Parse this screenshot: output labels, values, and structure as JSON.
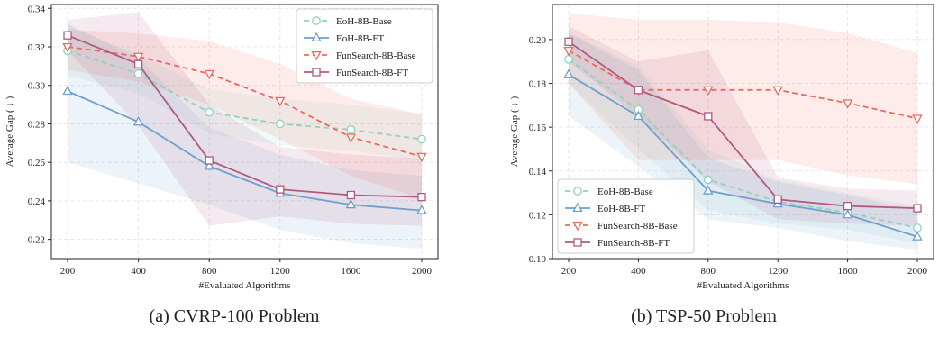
{
  "figures": [
    {
      "caption": "(a) CVRP-100 Problem",
      "chart_data": {
        "type": "line",
        "x": [
          200,
          400,
          800,
          1200,
          1600,
          2000
        ],
        "x_ticks": [
          "200",
          "400",
          "800",
          "1200",
          "1600",
          "2000"
        ],
        "x_scale": "categorical-evenly-spaced",
        "xlabel": "#Evaluated Algorithms",
        "ylabel": "Average Gap ( ↓ )",
        "ylim": [
          0.21,
          0.342
        ],
        "y_ticks": [
          0.22,
          0.24,
          0.26,
          0.28,
          0.3,
          0.32,
          0.34
        ],
        "grid": true,
        "legend_position": "top-right",
        "series": [
          {
            "name": "EoH-8B-Base",
            "color": "#8fd3bf",
            "dash": true,
            "marker": "circle",
            "values": [
              0.318,
              0.306,
              0.286,
              0.28,
              0.277,
              0.272
            ],
            "band": [
              [
                0.331,
                0.305
              ],
              [
                0.316,
                0.296
              ],
              [
                0.298,
                0.275
              ],
              [
                0.293,
                0.269
              ],
              [
                0.29,
                0.266
              ],
              [
                0.285,
                0.261
              ]
            ]
          },
          {
            "name": "EoH-8B-FT",
            "color": "#6f9fcf",
            "dash": false,
            "marker": "triangle",
            "values": [
              0.297,
              0.281,
              0.258,
              0.244,
              0.238,
              0.235
            ],
            "band": [
              [
                0.332,
                0.26
              ],
              [
                0.314,
                0.249
              ],
              [
                0.278,
                0.238
              ],
              [
                0.264,
                0.225
              ],
              [
                0.256,
                0.218
              ],
              [
                0.253,
                0.215
              ]
            ]
          },
          {
            "name": "FunSearch-8B-Base",
            "color": "#ec6a5d",
            "dash": true,
            "marker": "triangle-down",
            "values": [
              0.32,
              0.315,
              0.306,
              0.292,
              0.273,
              0.263
            ],
            "band": [
              [
                0.329,
                0.308
              ],
              [
                0.327,
                0.302
              ],
              [
                0.323,
                0.29
              ],
              [
                0.311,
                0.272
              ],
              [
                0.293,
                0.253
              ],
              [
                0.285,
                0.241
              ]
            ]
          },
          {
            "name": "FunSearch-8B-FT",
            "color": "#b05a80",
            "dash": false,
            "marker": "square",
            "values": [
              0.326,
              0.311,
              0.261,
              0.246,
              0.243,
              0.242
            ],
            "band": [
              [
                0.334,
                0.318
              ],
              [
                0.338,
                0.279
              ],
              [
                0.29,
                0.227
              ],
              [
                0.268,
                0.232
              ],
              [
                0.264,
                0.228
              ],
              [
                0.262,
                0.227
              ]
            ]
          }
        ]
      }
    },
    {
      "caption": "(b) TSP-50 Problem",
      "chart_data": {
        "type": "line",
        "x": [
          200,
          400,
          800,
          1200,
          1600,
          2000
        ],
        "x_ticks": [
          "200",
          "400",
          "800",
          "1200",
          "1600",
          "2000"
        ],
        "x_scale": "categorical-evenly-spaced",
        "xlabel": "#Evaluated Algorithms",
        "ylabel": "Average Gap ( ↓ )",
        "ylim": [
          0.1,
          0.216
        ],
        "y_ticks": [
          0.1,
          0.12,
          0.14,
          0.16,
          0.18,
          0.2
        ],
        "grid": true,
        "legend_position": "lower-left",
        "series": [
          {
            "name": "EoH-8B-Base",
            "color": "#8fd3bf",
            "dash": true,
            "marker": "circle",
            "values": [
              0.191,
              0.168,
              0.136,
              0.126,
              0.121,
              0.114
            ],
            "band": [
              [
                0.203,
                0.18
              ],
              [
                0.188,
                0.15
              ],
              [
                0.15,
                0.122
              ],
              [
                0.136,
                0.116
              ],
              [
                0.13,
                0.113
              ],
              [
                0.124,
                0.107
              ]
            ]
          },
          {
            "name": "EoH-8B-FT",
            "color": "#6f9fcf",
            "dash": false,
            "marker": "triangle",
            "values": [
              0.184,
              0.165,
              0.131,
              0.125,
              0.12,
              0.11
            ],
            "band": [
              [
                0.203,
                0.165
              ],
              [
                0.186,
                0.142
              ],
              [
                0.146,
                0.118
              ],
              [
                0.135,
                0.114
              ],
              [
                0.129,
                0.108
              ],
              [
                0.122,
                0.104
              ]
            ]
          },
          {
            "name": "FunSearch-8B-Base",
            "color": "#ec6a5d",
            "dash": true,
            "marker": "triangle-down",
            "values": [
              0.195,
              0.177,
              0.177,
              0.177,
              0.171,
              0.164
            ],
            "band": [
              [
                0.212,
                0.18
              ],
              [
                0.209,
                0.145
              ],
              [
                0.209,
                0.145
              ],
              [
                0.208,
                0.145
              ],
              [
                0.203,
                0.138
              ],
              [
                0.194,
                0.134
              ]
            ]
          },
          {
            "name": "FunSearch-8B-FT",
            "color": "#b05a80",
            "dash": false,
            "marker": "square",
            "values": [
              0.199,
              0.177,
              0.165,
              0.127,
              0.124,
              0.123
            ],
            "band": [
              [
                0.206,
                0.19
              ],
              [
                0.19,
                0.165
              ],
              [
                0.195,
                0.135
              ],
              [
                0.137,
                0.118
              ],
              [
                0.132,
                0.116
              ],
              [
                0.131,
                0.115
              ]
            ]
          }
        ]
      }
    }
  ]
}
